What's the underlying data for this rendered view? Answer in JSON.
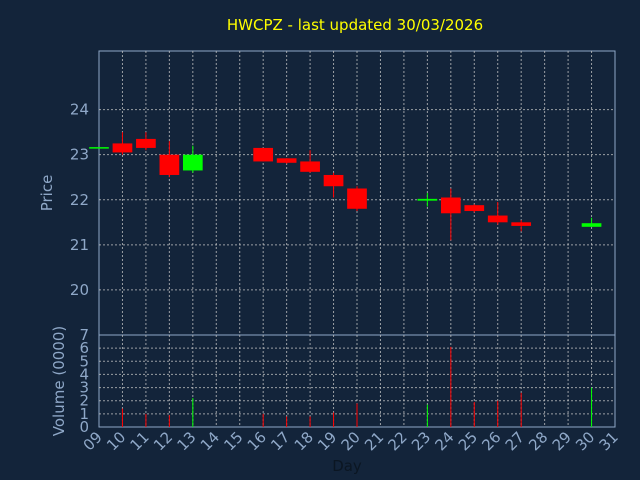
{
  "title": "HWCPZ - last updated 30/03/2026",
  "chart_data": [
    {
      "type": "candlestick",
      "ylabel": "Price",
      "ylim": [
        19,
        25.3
      ],
      "yticks": [
        20,
        21,
        22,
        23,
        24
      ],
      "grid": true,
      "days": [
        "09",
        "10",
        "11",
        "12",
        "13",
        "14",
        "15",
        "16",
        "17",
        "18",
        "19",
        "20",
        "21",
        "22",
        "23",
        "24",
        "25",
        "26",
        "27",
        "28",
        "29",
        "30",
        "31"
      ],
      "candles": [
        {
          "day": "09",
          "open": 23.15,
          "high": 23.15,
          "low": 23.15,
          "close": 23.15
        },
        {
          "day": "10",
          "open": 23.25,
          "high": 23.5,
          "low": 23.0,
          "close": 23.05
        },
        {
          "day": "11",
          "open": 23.35,
          "high": 23.5,
          "low": 23.1,
          "close": 23.15
        },
        {
          "day": "12",
          "open": 23.0,
          "high": 23.3,
          "low": 22.5,
          "close": 22.55
        },
        {
          "day": "13",
          "open": 22.65,
          "high": 23.2,
          "low": 22.6,
          "close": 23.0
        },
        {
          "day": "16",
          "open": 23.15,
          "high": 23.15,
          "low": 22.85,
          "close": 22.85
        },
        {
          "day": "17",
          "open": 22.92,
          "high": 22.92,
          "low": 22.8,
          "close": 22.82
        },
        {
          "day": "18",
          "open": 22.85,
          "high": 23.1,
          "low": 22.6,
          "close": 22.62
        },
        {
          "day": "19",
          "open": 22.55,
          "high": 22.6,
          "low": 22.05,
          "close": 22.3
        },
        {
          "day": "20",
          "open": 22.25,
          "high": 22.3,
          "low": 21.75,
          "close": 21.8
        },
        {
          "day": "23",
          "open": 21.98,
          "high": 22.15,
          "low": 21.85,
          "close": 22.02
        },
        {
          "day": "24",
          "open": 22.05,
          "high": 22.25,
          "low": 21.1,
          "close": 21.7
        },
        {
          "day": "25",
          "open": 21.88,
          "high": 21.9,
          "low": 21.72,
          "close": 21.75
        },
        {
          "day": "26",
          "open": 21.65,
          "high": 21.95,
          "low": 21.45,
          "close": 21.5
        },
        {
          "day": "27",
          "open": 21.5,
          "high": 21.55,
          "low": 21.3,
          "close": 21.42
        },
        {
          "day": "30",
          "open": 21.4,
          "high": 21.6,
          "low": 21.4,
          "close": 21.48
        }
      ]
    },
    {
      "type": "bar",
      "ylabel": "Volume (0000)",
      "xlabel": "Day",
      "ylim": [
        0,
        7
      ],
      "yticks": [
        0,
        1,
        2,
        3,
        4,
        5,
        6,
        7
      ],
      "grid": true,
      "categories": [
        "09",
        "10",
        "11",
        "12",
        "13",
        "16",
        "17",
        "18",
        "19",
        "20",
        "23",
        "24",
        "25",
        "26",
        "27",
        "30"
      ],
      "values": [
        0,
        1.4,
        1.0,
        0.9,
        2.2,
        1.0,
        0.8,
        0.8,
        1.1,
        1.8,
        1.7,
        6.1,
        1.9,
        2.0,
        2.6,
        3.0
      ],
      "directions": [
        "up",
        "down",
        "down",
        "down",
        "up",
        "down",
        "down",
        "down",
        "down",
        "down",
        "up",
        "down",
        "down",
        "down",
        "down",
        "up"
      ]
    }
  ],
  "colors": {
    "background": "#13243a",
    "up": "#00ff00",
    "down": "#ff0000",
    "grid": "#c8c8c8",
    "axis_text": "#8fa8c8",
    "title": "#ffff00"
  }
}
